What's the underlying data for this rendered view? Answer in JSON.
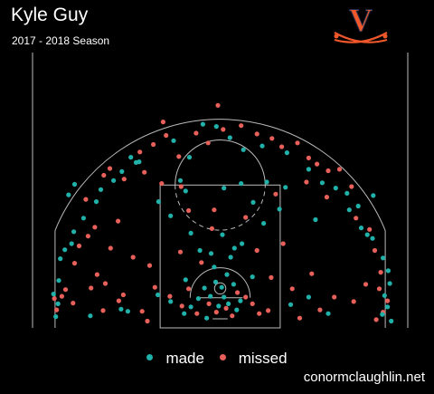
{
  "header": {
    "title": "Kyle Guy",
    "subtitle": "2017 - 2018 Season",
    "logo_letter": "V"
  },
  "colors": {
    "background": "#000000",
    "made": "#20b2aa",
    "missed": "#e8605a",
    "court_lines": "#bbbbbb",
    "logo_orange": "#f0572a",
    "logo_navy": "#232d4b"
  },
  "legend": {
    "made_label": "made",
    "missed_label": "missed"
  },
  "footer": {
    "credit": "conormclaughlin.net"
  },
  "chart_data": {
    "type": "scatter",
    "description": "Shot chart: each dot is one shot attempt on a half court (x in feet from center, y in feet from baseline).",
    "xlim": [
      -25,
      25
    ],
    "ylim": [
      0,
      30
    ],
    "grid": false,
    "legend_position": "bottom-center",
    "series": [
      {
        "name": "made",
        "color": "#20b2aa",
        "points": [
          [
            -21.6,
            3.2
          ],
          [
            -21.9,
            1.5
          ],
          [
            -22.2,
            4.5
          ],
          [
            -21.5,
            6.3
          ],
          [
            -21.3,
            9.2
          ],
          [
            -20.7,
            10.4
          ],
          [
            -19.8,
            11.2
          ],
          [
            -19.5,
            12.8
          ],
          [
            -18.2,
            14.6
          ],
          [
            -16.5,
            16.8
          ],
          [
            -15.9,
            18.4
          ],
          [
            -14.2,
            19.6
          ],
          [
            -13.1,
            20.8
          ],
          [
            -11.9,
            22.7
          ],
          [
            -10.8,
            22.1
          ],
          [
            -6.2,
            24.9
          ],
          [
            -4.1,
            22.7
          ],
          [
            -2.3,
            27.1
          ],
          [
            -0.5,
            26.8
          ],
          [
            1.3,
            25.3
          ],
          [
            3.1,
            23.7
          ],
          [
            5.6,
            24.2
          ],
          [
            8.9,
            23.3
          ],
          [
            11.8,
            21.1
          ],
          [
            13.6,
            19.3
          ],
          [
            15.4,
            18.6
          ],
          [
            16.9,
            17.9
          ],
          [
            17.2,
            15.7
          ],
          [
            18.4,
            16.2
          ],
          [
            18.8,
            13.3
          ],
          [
            19.6,
            12.4
          ],
          [
            20.3,
            11.9
          ],
          [
            21.7,
            9.3
          ],
          [
            22.4,
            7.6
          ],
          [
            22.6,
            5.9
          ],
          [
            21.9,
            4.3
          ],
          [
            22.3,
            2.8
          ],
          [
            21.6,
            1.8
          ],
          [
            22.8,
            0.9
          ],
          [
            -17.3,
            1.6
          ],
          [
            -13.2,
            2.5
          ],
          [
            -8.3,
            4.4
          ],
          [
            -6.6,
            3.5
          ],
          [
            -4.8,
            1.9
          ],
          [
            -3.9,
            2.8
          ],
          [
            -2.9,
            3.9
          ],
          [
            -2.1,
            5.3
          ],
          [
            -1.3,
            4.2
          ],
          [
            -0.6,
            6.1
          ],
          [
            0.2,
            5.4
          ],
          [
            0.5,
            4.1
          ],
          [
            1.1,
            3.2
          ],
          [
            1.8,
            5.8
          ],
          [
            2.2,
            2.4
          ],
          [
            2.7,
            3.6
          ],
          [
            -1.8,
            1.3
          ],
          [
            -0.2,
            2.9
          ],
          [
            0.9,
            7.1
          ],
          [
            -0.8,
            8.1
          ],
          [
            1.4,
            9.4
          ],
          [
            -2.7,
            10.3
          ],
          [
            2.9,
            11.2
          ],
          [
            -3.9,
            12.6
          ],
          [
            0.3,
            12.4
          ],
          [
            5.8,
            13.9
          ],
          [
            -6.6,
            14.9
          ],
          [
            -8.2,
            16.8
          ],
          [
            7.9,
            15.8
          ],
          [
            4.4,
            16.7
          ],
          [
            -4.6,
            18.2
          ],
          [
            0.5,
            18.6
          ],
          [
            2.8,
            19.2
          ],
          [
            6.2,
            19.4
          ],
          [
            -5.3,
            19.6
          ],
          [
            8.7,
            18.7
          ],
          [
            12.7,
            14.4
          ],
          [
            9.4,
            3.1
          ],
          [
            14.4,
            1.9
          ],
          [
            11.8,
            4.1
          ],
          [
            -12.3,
            2.2
          ],
          [
            -20.2,
            17.7
          ],
          [
            20.4,
            17.6
          ],
          [
            -19.4,
            19.1
          ],
          [
            -11.2,
            22.0
          ],
          [
            4.3,
            6.8
          ],
          [
            -4.6,
            6.4
          ],
          [
            -1.2,
            9.9
          ],
          [
            1.9,
            10.6
          ]
        ]
      },
      {
        "name": "missed",
        "color": "#e8605a",
        "points": [
          [
            -21.8,
            2.4
          ],
          [
            -21.1,
            4.2
          ],
          [
            -20.6,
            5.1
          ],
          [
            -22.1,
            3.9
          ],
          [
            -19.4,
            8.6
          ],
          [
            -18.8,
            10.9
          ],
          [
            -17.6,
            12.2
          ],
          [
            -16.7,
            13.4
          ],
          [
            -17.9,
            17.1
          ],
          [
            -15.5,
            20.3
          ],
          [
            -14.7,
            21.2
          ],
          [
            -12.8,
            19.8
          ],
          [
            -10.7,
            23.4
          ],
          [
            -8.9,
            24.4
          ],
          [
            -7.2,
            25.6
          ],
          [
            -5.5,
            22.8
          ],
          [
            -3.2,
            25.9
          ],
          [
            -1.6,
            24.6
          ],
          [
            0.4,
            26.4
          ],
          [
            2.8,
            26.9
          ],
          [
            4.9,
            25.8
          ],
          [
            6.9,
            25.2
          ],
          [
            8.2,
            24.1
          ],
          [
            10.3,
            24.6
          ],
          [
            11.8,
            22.6
          ],
          [
            12.9,
            21.8
          ],
          [
            14.4,
            20.9
          ],
          [
            15.9,
            21.1
          ],
          [
            17.5,
            18.8
          ],
          [
            18.1,
            14.6
          ],
          [
            19.9,
            13.1
          ],
          [
            20.6,
            10.3
          ],
          [
            21.4,
            7.4
          ],
          [
            21.2,
            5.2
          ],
          [
            22.3,
            3.6
          ],
          [
            21.7,
            2.1
          ],
          [
            -15.6,
            2.3
          ],
          [
            -12.9,
            4.4
          ],
          [
            -10.4,
            2.2
          ],
          [
            -8.7,
            5.4
          ],
          [
            -6.7,
            4.2
          ],
          [
            -5.1,
            2.9
          ],
          [
            -4.2,
            5.2
          ],
          [
            -3.1,
            1.9
          ],
          [
            -1.5,
            3.2
          ],
          [
            -0.5,
            2.1
          ],
          [
            0.8,
            2.6
          ],
          [
            1.6,
            1.6
          ],
          [
            2.3,
            4.7
          ],
          [
            3.4,
            4.1
          ],
          [
            4.3,
            3.2
          ],
          [
            5.2,
            1.9
          ],
          [
            6.4,
            2.3
          ],
          [
            -2.5,
            8.7
          ],
          [
            -5.3,
            10.1
          ],
          [
            4.9,
            10.3
          ],
          [
            -1.1,
            13.2
          ],
          [
            3.4,
            14.7
          ],
          [
            -4.2,
            15.6
          ],
          [
            -7.8,
            19.2
          ],
          [
            -10.1,
            20.7
          ],
          [
            -5.2,
            18.8
          ],
          [
            -0.8,
            15.7
          ],
          [
            7.4,
            17.8
          ],
          [
            11.5,
            19.4
          ],
          [
            14.2,
            17.4
          ],
          [
            12.2,
            7.2
          ],
          [
            8.4,
            11.2
          ],
          [
            -11.6,
            9.4
          ],
          [
            -13.6,
            14.2
          ],
          [
            -14.6,
            10.6
          ],
          [
            15.2,
            4.1
          ],
          [
            10.6,
            1.3
          ],
          [
            -9.4,
            8.3
          ],
          [
            -19.6,
            3.3
          ],
          [
            -17.2,
            5.3
          ],
          [
            -16.4,
            7.1
          ],
          [
            -15.3,
            5.9
          ],
          [
            -13.5,
            3.6
          ],
          [
            -9.7,
            0.9
          ],
          [
            6.8,
            6.7
          ],
          [
            9.6,
            5.2
          ],
          [
            13.3,
            2.4
          ],
          [
            17.8,
            3.5
          ],
          [
            19.4,
            5.8
          ],
          [
            20.8,
            1.1
          ],
          [
            -0.3,
            29.6
          ],
          [
            -7.6,
            27.4
          ]
        ]
      }
    ]
  }
}
